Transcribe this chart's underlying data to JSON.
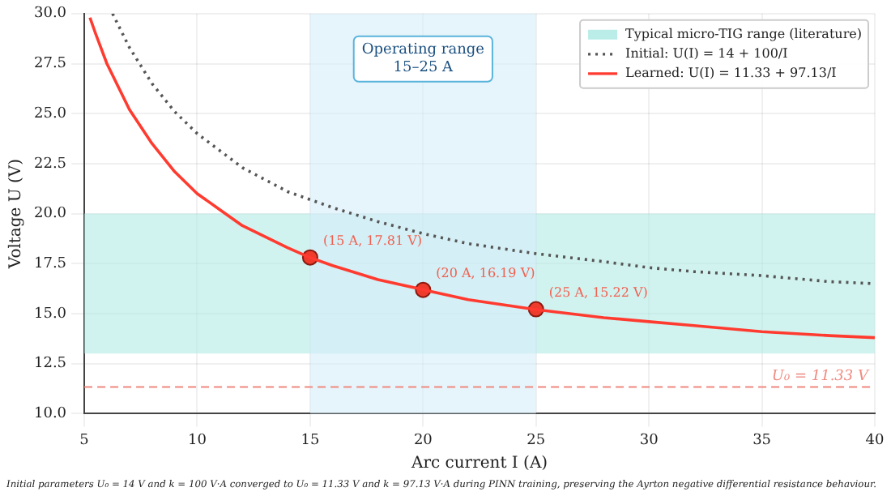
{
  "chart_data": {
    "type": "line",
    "xlabel": "Arc current I (A)",
    "ylabel": "Voltage U (V)",
    "xlim": [
      5,
      40
    ],
    "xticks": [
      5,
      10,
      15,
      20,
      25,
      30,
      35,
      40
    ],
    "ylim": [
      10,
      30
    ],
    "yticks": [
      {
        "value": 10,
        "label": "10.0"
      },
      {
        "value": 12.5,
        "label": "12.5"
      },
      {
        "value": 15,
        "label": "15.0"
      },
      {
        "value": 17.5,
        "label": "17.5"
      },
      {
        "value": 20,
        "label": "20.0"
      },
      {
        "value": 22.5,
        "label": "22.5"
      },
      {
        "value": 25,
        "label": "25.0"
      },
      {
        "value": 27.5,
        "label": "27.5"
      },
      {
        "value": 30,
        "label": "30.0"
      }
    ],
    "grid": true,
    "legend": "top right",
    "series": [
      {
        "name": "Initial: U(I) = 14 + 100/I",
        "color": "#555555",
        "line_style": "dotted",
        "marker": "none",
        "x": [
          6.25,
          7,
          8,
          9,
          10,
          12,
          14,
          16,
          18,
          20,
          22,
          25,
          28,
          30,
          32,
          35,
          38,
          40
        ],
        "values": [
          30,
          28.3,
          26.5,
          25.1,
          24,
          22.3,
          21.1,
          20.3,
          19.6,
          19,
          18.5,
          18,
          17.6,
          17.3,
          17.1,
          16.9,
          16.6,
          16.5
        ]
      },
      {
        "name": "Learned: U(I) = 11.33 + 97.13/I",
        "color": "#ff3b30",
        "line_style": "solid",
        "marker": "none",
        "x": [
          5.25,
          5.5,
          6,
          7,
          8,
          9,
          10,
          11,
          12,
          14,
          15,
          16,
          18,
          20,
          22,
          25,
          28,
          30,
          32,
          35,
          38,
          40
        ],
        "values": [
          29.8,
          29.0,
          27.5,
          25.2,
          23.5,
          22.1,
          21.0,
          20.2,
          19.4,
          18.3,
          17.8,
          17.4,
          16.7,
          16.2,
          15.7,
          15.2,
          14.8,
          14.6,
          14.4,
          14.1,
          13.9,
          13.8
        ]
      },
      {
        "type": "scatter",
        "color": "#ee3b2b",
        "marker": "circle",
        "x": [
          15,
          20,
          25
        ],
        "values": [
          17.81,
          16.19,
          15.22
        ],
        "value_labels": [
          "(15 A, 17.81 V)",
          "(20 A, 16.19 V)",
          "(25 A, 15.22 V)"
        ]
      }
    ],
    "bands": [
      {
        "axis": "y",
        "from": 13,
        "to": 20,
        "label": "Typical micro-TIG range (literature)",
        "color": "#b2ebe6"
      },
      {
        "axis": "x",
        "from": 15,
        "to": 25,
        "label": "Operating range\n15–25 A",
        "color": "#d6ecf8"
      }
    ],
    "ref_lines": [
      {
        "axis": "y",
        "value": 11.33,
        "label": "U₀ = 11.33 V",
        "color": "#f08a80",
        "line_style": "dashed"
      }
    ],
    "annotations": [
      "Initial parameters U₀ = 14 V and k = 100 V·A converged to U₀ = 11.33 V and k = 97.13 V·A during PINN training, preserving the Ayrton negative differential resistance behaviour."
    ]
  }
}
